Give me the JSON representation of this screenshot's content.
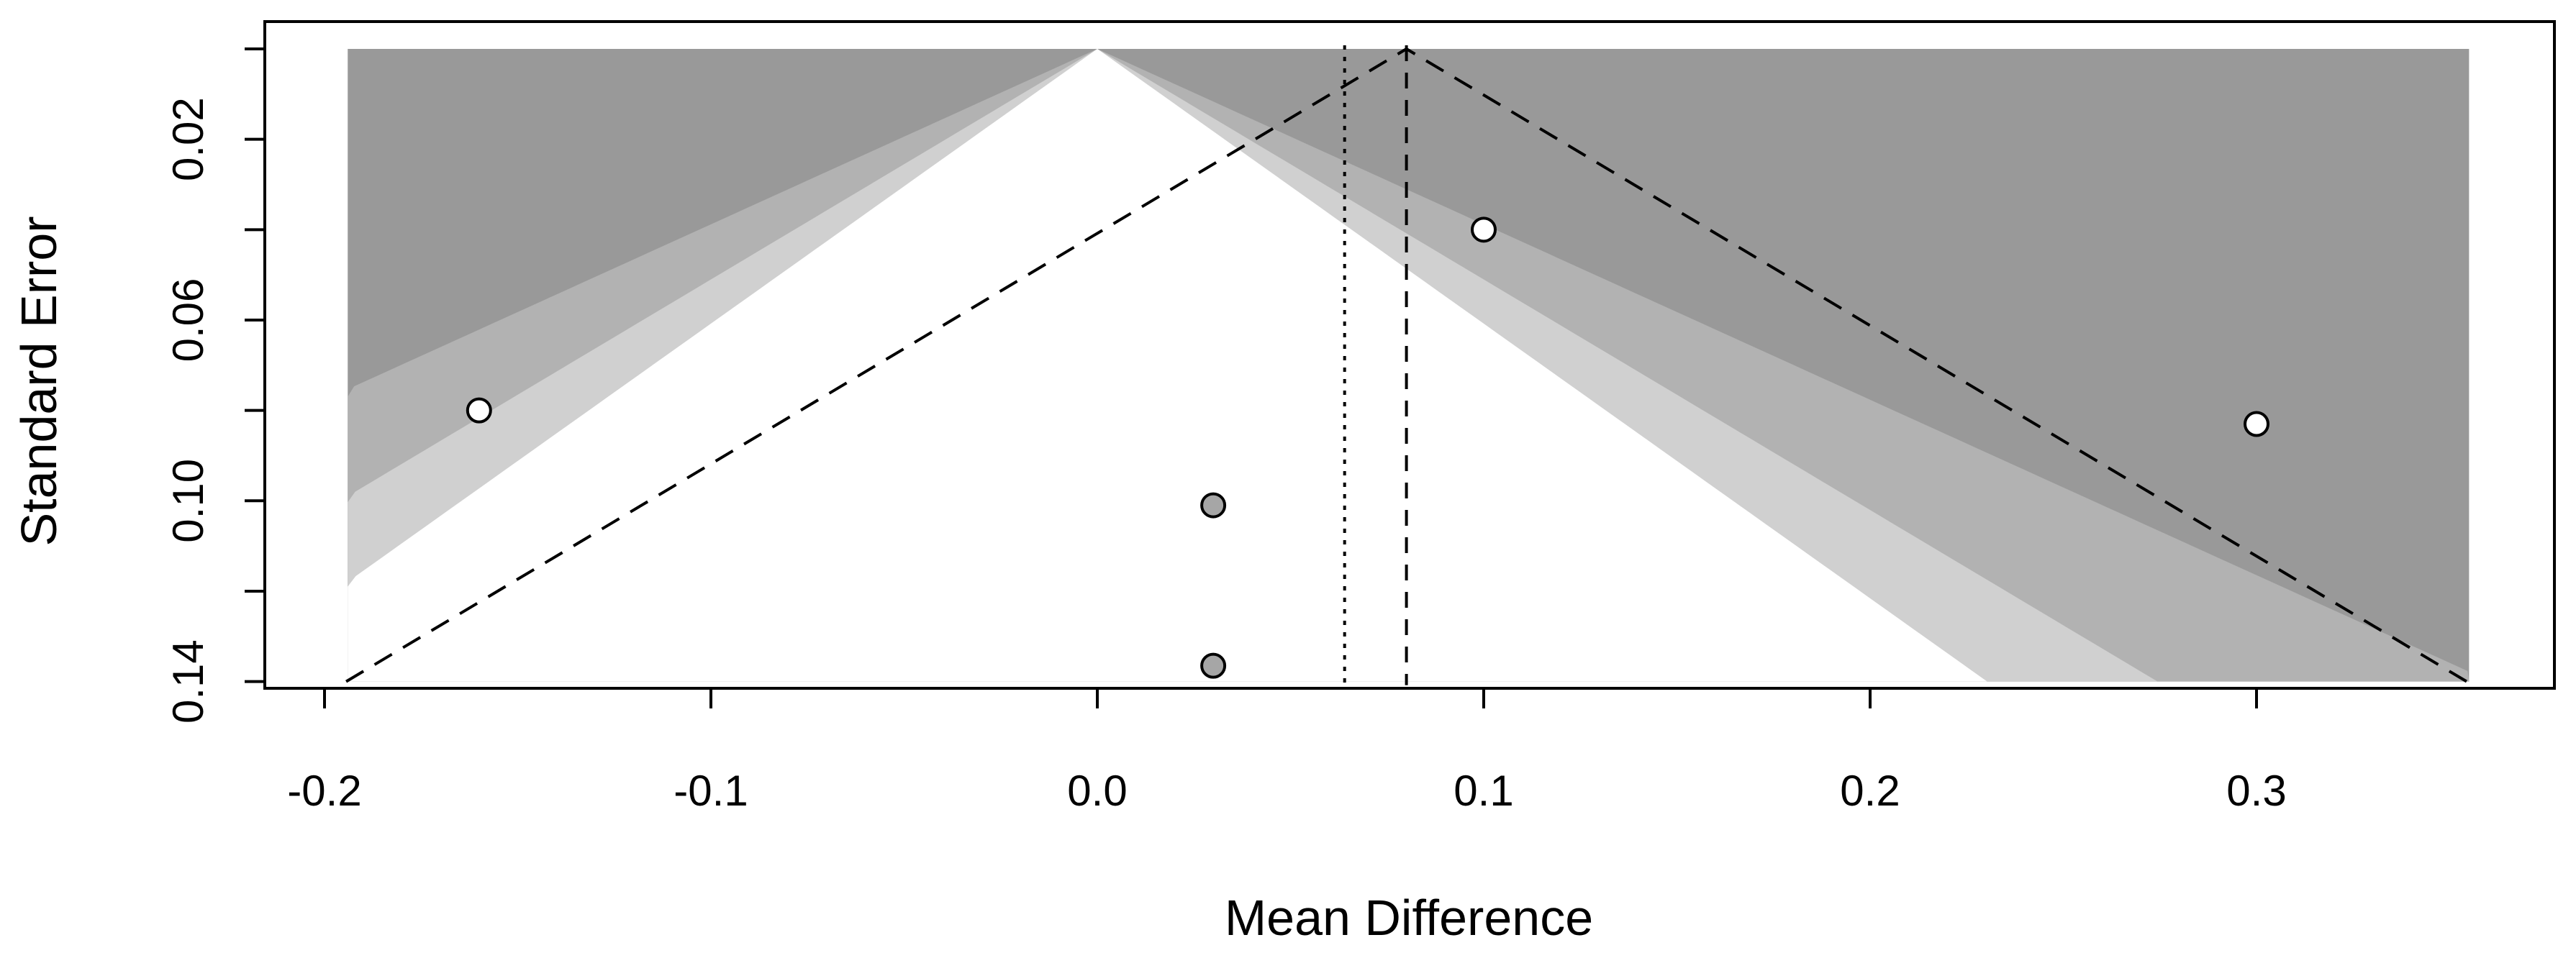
{
  "chart_data": {
    "type": "scatter",
    "subtype": "contour-enhanced funnel plot",
    "xlabel": "Mean Difference",
    "ylabel": "Standard Error",
    "xlim": [
      -0.2,
      0.36
    ],
    "ylim": [
      0.14,
      0
    ],
    "x_ticks": [
      "-0.2",
      "-0.1",
      "0.0",
      "0.1",
      "0.2",
      "0.3"
    ],
    "x_tick_values": [
      -0.2,
      -0.1,
      0.0,
      0.1,
      0.2,
      0.3
    ],
    "y_ticks": [
      "0.02",
      "0.06",
      "0.10",
      "0.14"
    ],
    "y_tick_values": [
      0.02,
      0.06,
      0.1,
      0.14
    ],
    "y_minor_tick_values": [
      0.0,
      0.04,
      0.08,
      0.12
    ],
    "contour_center": 0.0,
    "contour_z": [
      1.645,
      1.96,
      2.576
    ],
    "contour_colors": [
      "#ffffff",
      "#d0d0d0",
      "#b2b2b2",
      "#999999"
    ],
    "estimate_line": 0.08,
    "pi_center": 0.08,
    "pi_z": 1.96,
    "reference_line": 0.064,
    "points": [
      {
        "x": -0.16,
        "se": 0.08,
        "filled": false
      },
      {
        "x": 0.1,
        "se": 0.04,
        "filled": false
      },
      {
        "x": 0.3,
        "se": 0.083,
        "filled": false
      },
      {
        "x": 0.03,
        "se": 0.101,
        "filled": true
      },
      {
        "x": 0.03,
        "se": 0.1365,
        "filled": true
      }
    ],
    "colors": {
      "open_point": "#ffffff",
      "filled_point": "#a6a6a6",
      "stroke": "#000000"
    }
  }
}
